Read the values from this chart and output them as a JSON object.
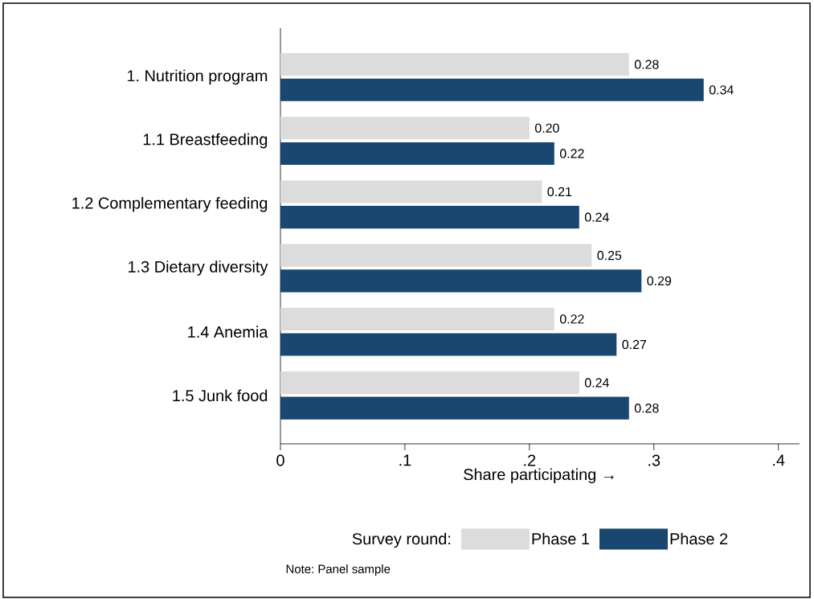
{
  "chart_data": {
    "type": "bar",
    "orientation": "horizontal",
    "xlabel": "Share participating →",
    "categories": [
      "1. Nutrition program",
      "1.1 Breastfeeding",
      "1.2 Complementary feeding",
      "1.3 Dietary diversity",
      "1.4 Anemia",
      "1.5 Junk food"
    ],
    "series": [
      {
        "name": "Phase 1",
        "color": "#dcdcdc",
        "values": [
          0.28,
          0.2,
          0.21,
          0.25,
          0.22,
          0.24
        ],
        "value_labels": [
          "0.28",
          "0.20",
          "0.21",
          "0.25",
          "0.22",
          "0.24"
        ]
      },
      {
        "name": "Phase 2",
        "color": "#1a476f",
        "values": [
          0.34,
          0.22,
          0.24,
          0.29,
          0.27,
          0.28
        ],
        "value_labels": [
          "0.34",
          "0.22",
          "0.24",
          "0.29",
          "0.27",
          "0.28"
        ]
      }
    ],
    "xlim": [
      0,
      0.417
    ],
    "xticks": [
      0,
      {
        "value": 0.1,
        "label": ".1"
      },
      {
        "value": 0.2,
        "label": ".2"
      },
      {
        "value": 0.3,
        "label": ".3"
      },
      {
        "value": 0.4,
        "label": ".4"
      }
    ],
    "legend": "bottom",
    "legend_title": "Survey round:",
    "grid": false,
    "annotations": [
      "Note: Panel sample"
    ]
  }
}
